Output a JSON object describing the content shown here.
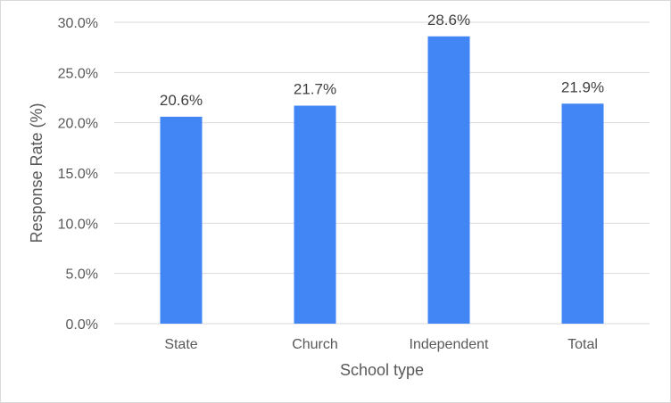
{
  "chart_data": {
    "type": "bar",
    "title": "",
    "xlabel": "School type",
    "ylabel": "Response Rate (%)",
    "categories": [
      "State",
      "Church",
      "Independent",
      "Total"
    ],
    "values": [
      20.6,
      21.7,
      28.6,
      21.9
    ],
    "data_labels": [
      "20.6%",
      "21.7%",
      "28.6%",
      "21.9%"
    ],
    "ylim": [
      0,
      30
    ],
    "yticks": [
      0,
      5,
      10,
      15,
      20,
      25,
      30
    ],
    "ytick_labels": [
      "0.0%",
      "5.0%",
      "10.0%",
      "15.0%",
      "20.0%",
      "25.0%",
      "30.0%"
    ],
    "grid": true,
    "legend": "none",
    "bar_color": "#4285F4",
    "grid_color": "#d9d9d9"
  }
}
